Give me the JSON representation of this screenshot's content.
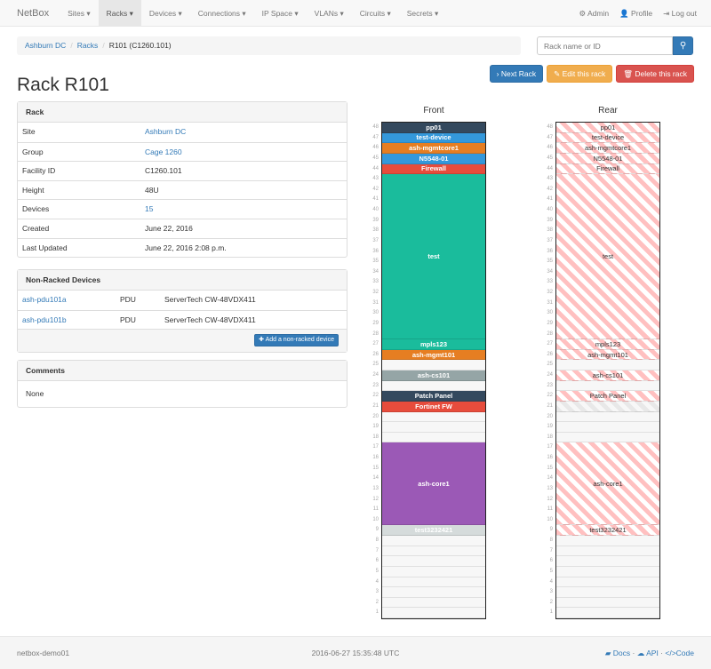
{
  "nav": {
    "brand": "NetBox",
    "items": [
      "Sites",
      "Racks",
      "Devices",
      "Connections",
      "IP Space",
      "VLANs",
      "Circuits",
      "Secrets"
    ],
    "active": "Racks",
    "admin": "Admin",
    "profile": "Profile",
    "logout": "Log out"
  },
  "breadcrumb": [
    "Ashburn DC",
    "Racks",
    "R101 (C1260.101)"
  ],
  "search": {
    "placeholder": "Rack name or ID"
  },
  "actions": {
    "next": "Next Rack",
    "edit": "Edit this rack",
    "delete": "Delete this rack"
  },
  "title": "Rack R101",
  "rack_panel": {
    "heading": "Rack",
    "rows": [
      {
        "k": "Site",
        "v": "Ashburn DC",
        "link": true
      },
      {
        "k": "Group",
        "v": "Cage 1260",
        "link": true
      },
      {
        "k": "Facility ID",
        "v": "C1260.101"
      },
      {
        "k": "Height",
        "v": "48U"
      },
      {
        "k": "Devices",
        "v": "15",
        "link": true
      },
      {
        "k": "Created",
        "v": "June 22, 2016"
      },
      {
        "k": "Last Updated",
        "v": "June 22, 2016 2:08 p.m."
      }
    ]
  },
  "non_racked": {
    "heading": "Non-Racked Devices",
    "rows": [
      {
        "name": "ash-pdu101a",
        "role": "PDU",
        "type": "ServerTech CW-48VDX411"
      },
      {
        "name": "ash-pdu101b",
        "role": "PDU",
        "type": "ServerTech CW-48VDX411"
      }
    ],
    "add_label": "Add a non-racked device"
  },
  "comments": {
    "heading": "Comments",
    "body": "None"
  },
  "rack": {
    "height": 48,
    "front_label": "Front",
    "rear_label": "Rear",
    "devices": [
      {
        "name": "pp01",
        "top": 48,
        "size": 1,
        "color": "#34495e"
      },
      {
        "name": "test-device",
        "top": 47,
        "size": 1,
        "color": "#3498db"
      },
      {
        "name": "ash-mgmtcore1",
        "top": 46,
        "size": 1,
        "color": "#e67e22"
      },
      {
        "name": "N5548-01",
        "top": 45,
        "size": 1,
        "color": "#3498db"
      },
      {
        "name": "Firewall",
        "top": 44,
        "size": 1,
        "color": "#e74c3c"
      },
      {
        "name": "test",
        "top": 43,
        "size": 16,
        "color": "#1abc9c"
      },
      {
        "name": "mpls123",
        "top": 27,
        "size": 1,
        "color": "#1abc9c"
      },
      {
        "name": "ash-mgmt101",
        "top": 26,
        "size": 1,
        "color": "#e67e22"
      },
      {
        "name": "ash-cs101",
        "top": 24,
        "size": 1,
        "color": "#95a5a6"
      },
      {
        "name": "Patch Panel",
        "top": 22,
        "size": 1,
        "color": "#34495e"
      },
      {
        "name": "Fortinet FW",
        "top": 21,
        "size": 1,
        "color": "#e74c3c",
        "full_depth": false
      },
      {
        "name": "ash-core1",
        "top": 17,
        "size": 8,
        "color": "#9b59b6"
      },
      {
        "name": "test3232421",
        "top": 9,
        "size": 1,
        "color": "#d5dbdb"
      }
    ]
  },
  "footer": {
    "host": "netbox-demo01",
    "time": "2016-06-27 15:35:48 UTC",
    "docs": "Docs",
    "api": "API",
    "code": "Code"
  }
}
